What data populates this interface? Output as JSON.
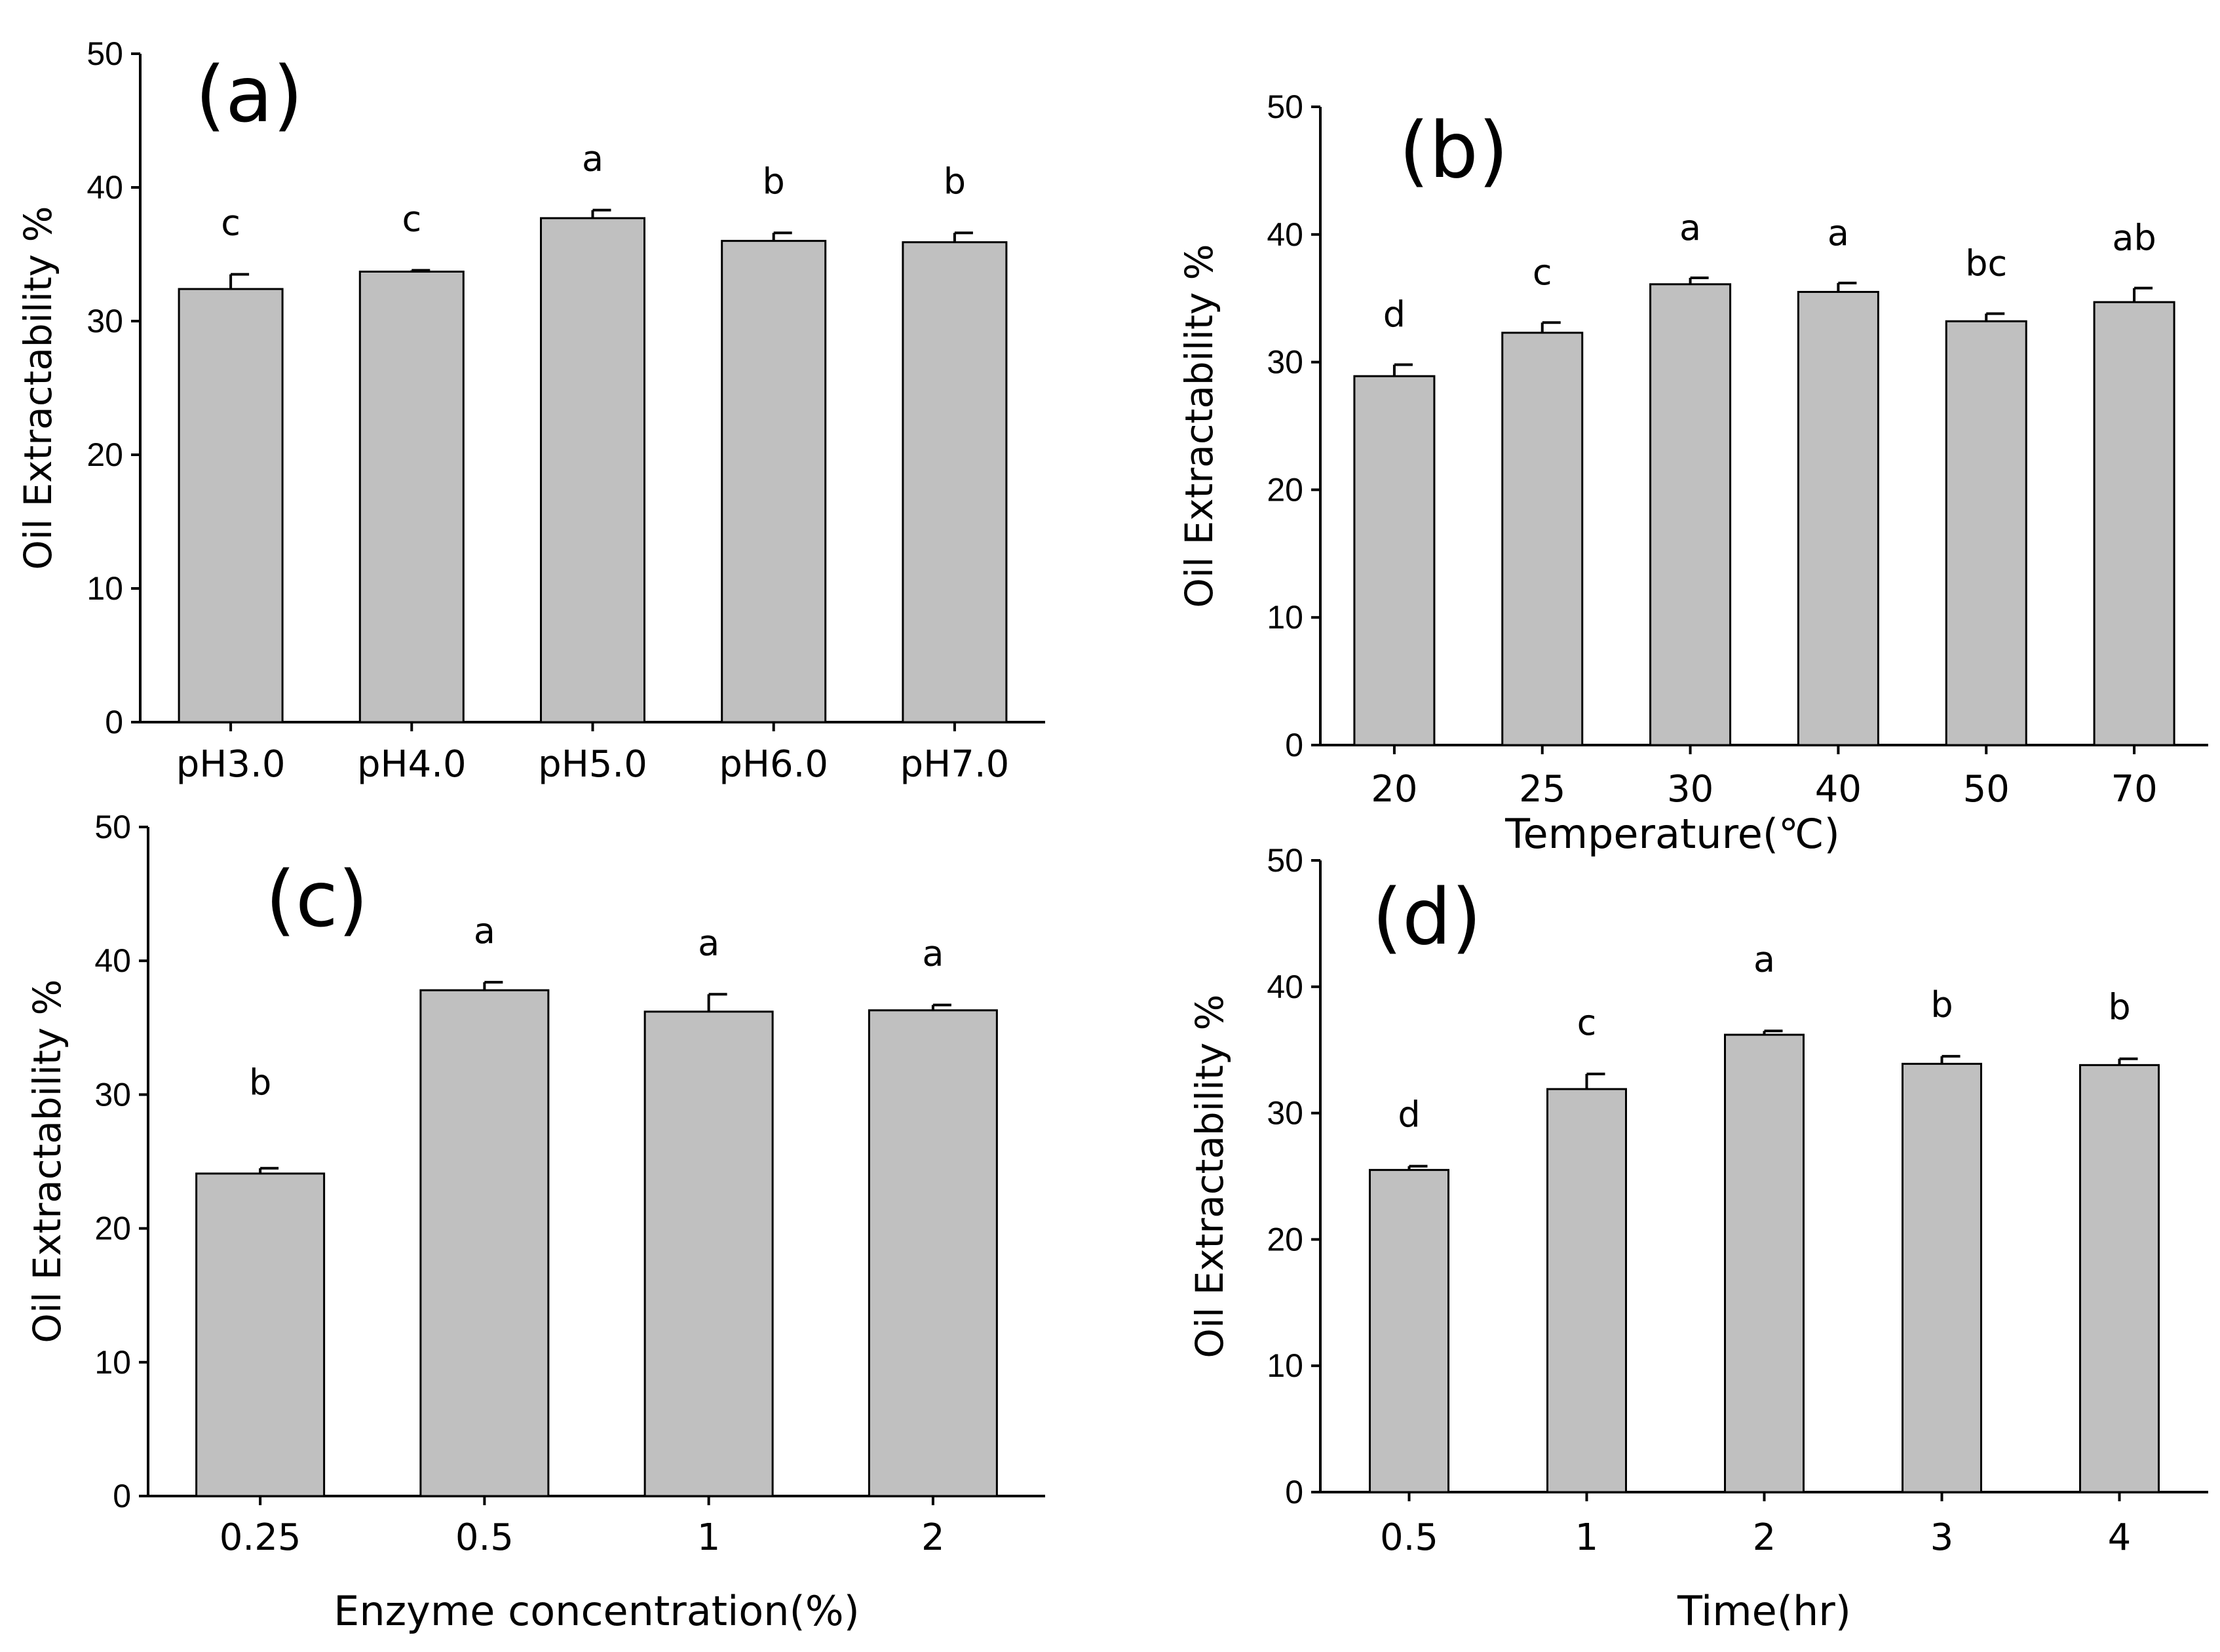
{
  "chart_data": [
    {
      "type": "bar",
      "panel_label": "(a)",
      "ylabel": "Oil Extractability %",
      "xlabel": "",
      "ylim": [
        0,
        50
      ],
      "yticks": [
        0,
        10,
        20,
        30,
        40,
        50
      ],
      "categories": [
        "pH3.0",
        "pH4.0",
        "pH5.0",
        "pH6.0",
        "pH7.0"
      ],
      "values": [
        32.4,
        33.7,
        37.7,
        36.0,
        35.9
      ],
      "errors": [
        1.1,
        0.1,
        0.6,
        0.6,
        0.7
      ],
      "significance": [
        "c",
        "c",
        "a",
        "b",
        "b"
      ],
      "bar_color": "#c0c0c0"
    },
    {
      "type": "bar",
      "panel_label": "(b)",
      "ylabel": "Oil Extractability %",
      "xlabel": "Temperature(℃)",
      "ylim": [
        0,
        50
      ],
      "yticks": [
        0,
        10,
        20,
        30,
        40,
        50
      ],
      "categories": [
        "20",
        "25",
        "30",
        "40",
        "50",
        "70"
      ],
      "values": [
        28.9,
        32.3,
        36.1,
        35.5,
        33.2,
        34.7
      ],
      "errors": [
        0.9,
        0.8,
        0.5,
        0.7,
        0.6,
        1.1
      ],
      "significance": [
        "d",
        "c",
        "a",
        "a",
        "bc",
        "ab"
      ],
      "bar_color": "#c0c0c0"
    },
    {
      "type": "bar",
      "panel_label": "(c)",
      "ylabel": "Oil Extractability %",
      "xlabel": "Enzyme concentration(%)",
      "ylim": [
        0,
        50
      ],
      "yticks": [
        0,
        10,
        20,
        30,
        40,
        50
      ],
      "categories": [
        "0.25",
        "0.5",
        "1",
        "2"
      ],
      "values": [
        24.1,
        37.8,
        36.2,
        36.3
      ],
      "errors": [
        0.4,
        0.6,
        1.3,
        0.4
      ],
      "significance": [
        "b",
        "a",
        "a",
        "a"
      ],
      "bar_color": "#c0c0c0"
    },
    {
      "type": "bar",
      "panel_label": "(d)",
      "ylabel": "Oil Extractability %",
      "xlabel": "Time(hr)",
      "ylim": [
        0,
        50
      ],
      "yticks": [
        0,
        10,
        20,
        30,
        40,
        50
      ],
      "categories": [
        "0.5",
        "1",
        "2",
        "3",
        "4"
      ],
      "values": [
        25.5,
        31.9,
        36.2,
        33.9,
        33.8
      ],
      "errors": [
        0.3,
        1.2,
        0.3,
        0.6,
        0.5
      ],
      "significance": [
        "d",
        "c",
        "a",
        "b",
        "b"
      ],
      "bar_color": "#c0c0c0"
    }
  ]
}
